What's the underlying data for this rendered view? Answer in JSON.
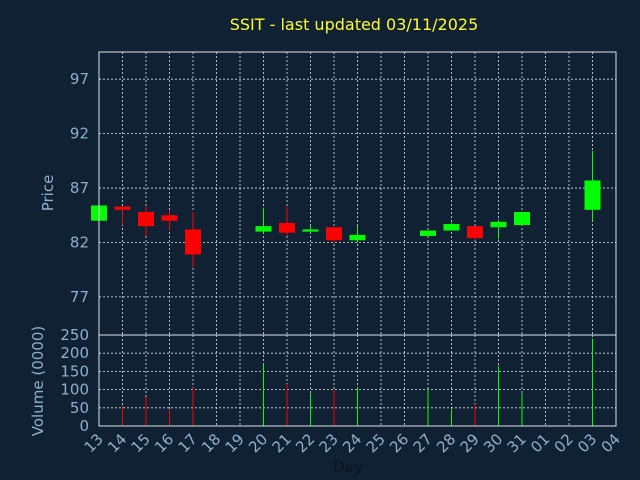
{
  "chart_data": {
    "type": "candlestick",
    "title": "SSIT - last updated 03/11/2025",
    "xlabel": "Day",
    "ylabel": "Price",
    "volume_label": "Volume (0000)",
    "x": [
      "13",
      "14",
      "15",
      "16",
      "17",
      "18",
      "19",
      "20",
      "21",
      "22",
      "23",
      "24",
      "25",
      "26",
      "27",
      "28",
      "29",
      "30",
      "31",
      "01",
      "02",
      "03",
      "04"
    ],
    "price_ticks": [
      77,
      82,
      87,
      92,
      97
    ],
    "price_ylim": [
      73.5,
      99.5
    ],
    "volume_ticks": [
      0,
      50,
      100,
      150,
      200,
      250
    ],
    "volume_ylim": [
      0,
      250
    ],
    "grid": true,
    "candles": [
      {
        "day": "13",
        "open": 84.0,
        "high": 85.4,
        "low": 84.0,
        "close": 85.4,
        "volume": 60
      },
      {
        "day": "14",
        "open": 85.3,
        "high": 85.3,
        "low": 83.6,
        "close": 85.0,
        "volume": 55
      },
      {
        "day": "15",
        "open": 84.8,
        "high": 85.3,
        "low": 82.6,
        "close": 83.5,
        "volume": 80
      },
      {
        "day": "16",
        "open": 84.5,
        "high": 85.0,
        "low": 83.1,
        "close": 84.0,
        "volume": 45
      },
      {
        "day": "17",
        "open": 83.2,
        "high": 84.8,
        "low": 79.7,
        "close": 80.9,
        "volume": 105
      },
      {
        "day": "20",
        "open": 83.0,
        "high": 85.2,
        "low": 82.8,
        "close": 83.5,
        "volume": 170
      },
      {
        "day": "21",
        "open": 83.8,
        "high": 85.3,
        "low": 82.6,
        "close": 82.9,
        "volume": 115
      },
      {
        "day": "22",
        "open": 83.0,
        "high": 83.6,
        "low": 82.9,
        "close": 83.2,
        "volume": 90
      },
      {
        "day": "23",
        "open": 83.4,
        "high": 83.4,
        "low": 82.0,
        "close": 82.2,
        "volume": 100
      },
      {
        "day": "24",
        "open": 82.2,
        "high": 83.5,
        "low": 82.0,
        "close": 82.7,
        "volume": 105
      },
      {
        "day": "27",
        "open": 82.6,
        "high": 83.1,
        "low": 82.5,
        "close": 83.1,
        "volume": 100
      },
      {
        "day": "28",
        "open": 83.1,
        "high": 83.8,
        "low": 83.1,
        "close": 83.7,
        "volume": 45
      },
      {
        "day": "29",
        "open": 83.5,
        "high": 83.5,
        "low": 82.2,
        "close": 82.4,
        "volume": 60
      },
      {
        "day": "30",
        "open": 83.4,
        "high": 84.1,
        "low": 82.3,
        "close": 83.9,
        "volume": 165
      },
      {
        "day": "31",
        "open": 83.6,
        "high": 84.8,
        "low": 83.6,
        "close": 84.8,
        "volume": 90
      },
      {
        "day": "03",
        "open": 85.0,
        "high": 90.4,
        "low": 84.0,
        "close": 87.7,
        "volume": 240
      }
    ],
    "colors": {
      "up": "#00ff00",
      "down": "#ff0000",
      "background": "#0f2133",
      "grid": "#dde3ea",
      "text": "#8fb0cc",
      "title": "#ffff33"
    }
  }
}
